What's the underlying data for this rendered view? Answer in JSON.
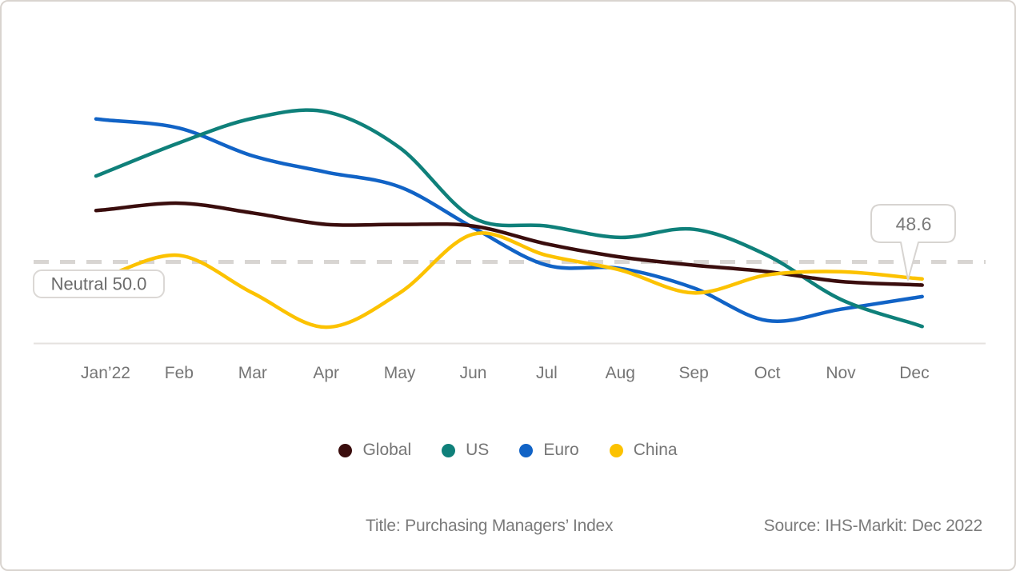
{
  "chart_data": {
    "type": "line",
    "x": [
      "Jan’22",
      "Feb",
      "Mar",
      "Apr",
      "May",
      "Jun",
      "Jul",
      "Aug",
      "Sep",
      "Oct",
      "Nov",
      "Dec"
    ],
    "series": [
      {
        "name": "Global",
        "color": "#3a0d0d",
        "values": [
          53.2,
          53.6,
          53.0,
          52.3,
          52.3,
          52.2,
          51.1,
          50.3,
          49.8,
          49.4,
          48.8,
          48.6
        ]
      },
      {
        "name": "US",
        "color": "#0f807a",
        "values": [
          55.5,
          57.3,
          58.8,
          59.2,
          57.0,
          52.7,
          52.2,
          51.5,
          52.0,
          50.4,
          47.7,
          46.2
        ]
      },
      {
        "name": "Euro",
        "color": "#1163c6",
        "values": [
          58.7,
          58.2,
          56.5,
          55.5,
          54.6,
          52.1,
          49.8,
          49.6,
          48.4,
          46.4,
          47.1,
          47.8
        ]
      },
      {
        "name": "China",
        "color": "#fcc200",
        "values": [
          49.1,
          50.4,
          48.1,
          46.0,
          48.1,
          51.7,
          50.4,
          49.5,
          48.1,
          49.2,
          49.4,
          49.0
        ]
      }
    ],
    "neutral_line": {
      "value": 50.0,
      "label": "Neutral 50.0",
      "color": "#d8d5d2"
    },
    "endpoint_callout": {
      "series": "Global",
      "x": "Dec",
      "value": 48.6,
      "label": "48.6"
    },
    "ylim": [
      44.5,
      61.0
    ],
    "grid": false,
    "legend_position": "bottom"
  },
  "footer": {
    "title": "Title: Purchasing Managers’ Index",
    "source": "Source: IHS-Markit: Dec 2022"
  },
  "colors": {
    "axis_line": "#e5e2df",
    "dashed_line": "#d8d5d2",
    "text_gray": "#757575",
    "card_border": "#d9d4cf"
  }
}
